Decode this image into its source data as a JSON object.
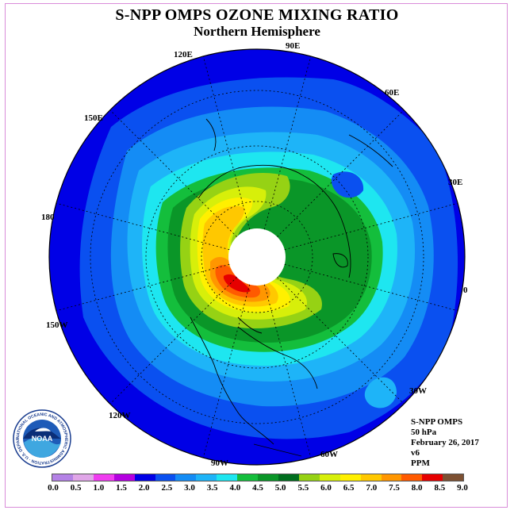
{
  "title": "S-NPP OMPS OZONE MIXING RATIO",
  "subtitle": "Northern Hemisphere",
  "longitude_labels": {
    "e90": "90E",
    "e120": "120E",
    "e60": "60E",
    "e150": "150E",
    "e30": "30E",
    "lon180": "180",
    "lon0": "0",
    "w150": "150W",
    "w30": "30W",
    "w120": "120W",
    "w60": "60W",
    "w90": "90W"
  },
  "info": {
    "instrument": "S-NPP OMPS",
    "level": "50 hPa",
    "date": "February 26, 2017",
    "version": "v6",
    "units": "PPM"
  },
  "logo": {
    "text": "NOAA",
    "ring_text": "NATIONAL OCEANIC AND ATMOSPHERIC ADMINISTRATION · U.S. DEPARTMENT OF COMMERCE"
  },
  "colorbar": {
    "ticks": [
      "0.0",
      "0.5",
      "1.0",
      "1.5",
      "2.0",
      "2.5",
      "3.0",
      "3.5",
      "4.0",
      "4.5",
      "5.0",
      "5.5",
      "6.0",
      "6.5",
      "7.0",
      "7.5",
      "8.0",
      "8.5",
      "9.0"
    ],
    "colors": [
      "#b482e6",
      "#e0a6e8",
      "#f03cf0",
      "#b400e0",
      "#0000e6",
      "#0a50f0",
      "#148cf5",
      "#1eb4f8",
      "#1ee6f0",
      "#14be3c",
      "#0a9628",
      "#006e1e",
      "#96d214",
      "#d7ef0a",
      "#fff000",
      "#ffc800",
      "#ff9600",
      "#ff5a00",
      "#e60000",
      "#7d5032"
    ]
  },
  "map_colors": {
    "ocean_bg": "#0000e6",
    "level_2_5": "#0a50f0",
    "level_3_0": "#148cf5",
    "level_3_5": "#1eb4f8",
    "level_4_0": "#1ee6f0",
    "level_4_5": "#14be3c",
    "level_5_0": "#0a9628",
    "level_5_5": "#96d214",
    "level_6_0": "#d7ef0a",
    "level_6_5": "#fff000",
    "level_7_0": "#ffc800",
    "level_7_5": "#ff9600",
    "level_8_0": "#ff5a00",
    "level_8_5": "#e60000",
    "polar_no_data": "#ffffff"
  }
}
